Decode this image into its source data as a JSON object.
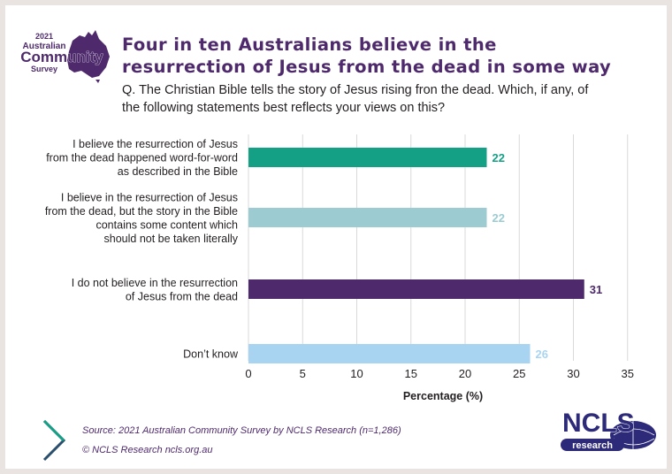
{
  "logo": {
    "year": "2021",
    "line1": "Australian",
    "line2": "Community",
    "line3": "Survey"
  },
  "title": {
    "line1": "Four in ten Australians believe in the",
    "line2": "resurrection of Jesus from the dead in some way"
  },
  "question": {
    "line1": "Q. The Christian Bible tells the story of Jesus rising fron the dead. Which, if any, of",
    "line2": "the following statements best reflects your views on this?"
  },
  "chart_data": {
    "type": "bar",
    "orientation": "horizontal",
    "categories": [
      [
        "I believe the resurrection of Jesus",
        "from the dead happened word-for-word",
        "as described in the Bible"
      ],
      [
        "I believe in the resurrection of Jesus",
        "from the dead, but the story in the Bible",
        "contains some content which",
        "should not be taken literally"
      ],
      [
        "I do not believe in the resurrection",
        "of Jesus from the dead"
      ],
      [
        "Don’t know"
      ]
    ],
    "values": [
      22,
      22,
      31,
      26
    ],
    "colors": [
      "#14a085",
      "#9ccbd2",
      "#4e2a6c",
      "#a8d4f2"
    ],
    "xlabel": "Percentage (%)",
    "xlim": [
      0,
      35
    ],
    "xticks": [
      0,
      5,
      10,
      15,
      20,
      25,
      30,
      35
    ],
    "grid": "vertical"
  },
  "footer": {
    "source": "Source: 2021 Australian Community Survey by NCLS Research (n=1,286)",
    "copyright": "© NCLS Research   ncls.org.au"
  },
  "ncls_logo": {
    "name": "NCLS",
    "sub": "research"
  },
  "colors": {
    "brand_purple": "#4e2a6c",
    "teal": "#14a085",
    "light_teal": "#9ccbd2",
    "light_blue": "#a8d4f2",
    "background": "#e9e4e1"
  }
}
